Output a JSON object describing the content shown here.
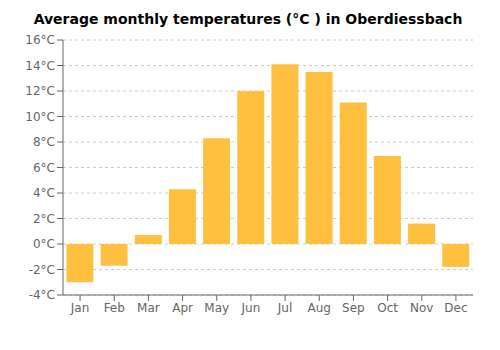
{
  "chart_data": {
    "type": "bar",
    "title": "Average monthly temperatures (°C ) in Oberdiessbach",
    "categories": [
      "Jan",
      "Feb",
      "Mar",
      "Apr",
      "May",
      "Jun",
      "Jul",
      "Aug",
      "Sep",
      "Oct",
      "Nov",
      "Dec"
    ],
    "values": [
      -3.0,
      -1.7,
      0.7,
      4.3,
      8.3,
      12.0,
      14.1,
      13.5,
      11.1,
      6.9,
      1.6,
      -1.8
    ],
    "color": "#FFC040",
    "ylim": [
      -4,
      16
    ],
    "yticks": [
      {
        "value": -4,
        "label": "-4°C"
      },
      {
        "value": -2,
        "label": "-2°C"
      },
      {
        "value": 0,
        "label": "0°C"
      },
      {
        "value": 2,
        "label": "2°C"
      },
      {
        "value": 4,
        "label": "4°C"
      },
      {
        "value": 6,
        "label": "6°C"
      },
      {
        "value": 8,
        "label": "8°C"
      },
      {
        "value": 10,
        "label": "10°C"
      },
      {
        "value": 12,
        "label": "12°C"
      },
      {
        "value": 14,
        "label": "14°C"
      },
      {
        "value": 16,
        "label": "16°C"
      }
    ],
    "grid": true
  }
}
